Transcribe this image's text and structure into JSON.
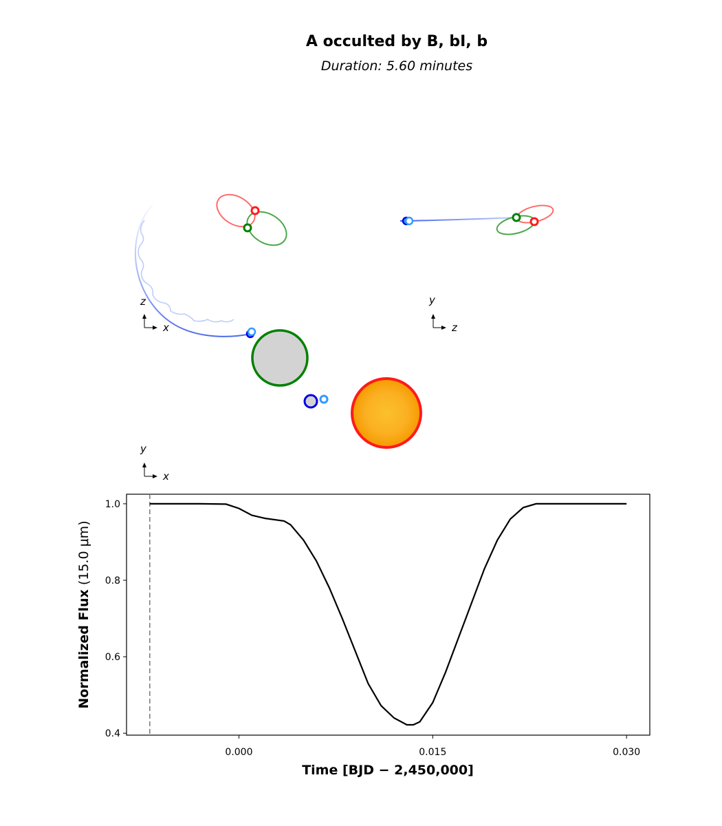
{
  "title": "A occulted by B, bI, b",
  "subtitle": "Duration: 5.60 minutes",
  "orbit_views": [
    {
      "name": "xz-view",
      "horizontal_axis": "x",
      "vertical_axis": "z"
    },
    {
      "name": "zy-view",
      "horizontal_axis": "z",
      "vertical_axis": "y"
    },
    {
      "name": "xy-view",
      "horizontal_axis": "x",
      "vertical_axis": "y"
    }
  ],
  "colors": {
    "star_A": "#ff1a1a",
    "star_A_fill": "#f9b21c",
    "star_B": "#008000",
    "star_B_fill": "#d3d3d3",
    "planet_bI": "#0000e6",
    "planet_b": "#3399ff",
    "orbit_A": "#ff6b6b",
    "orbit_B": "#4aa84a",
    "orbit_bI": "#5b7cf0"
  },
  "chart_data": {
    "type": "line",
    "xlabel_main": "Time [BJD",
    "xlabel_rest": " − 2,450,000]",
    "ylabel_main": "Normalized Flux",
    "ylabel_rest": " (15.0 μm)",
    "xlim": [
      -0.0087,
      0.0318
    ],
    "ylim": [
      0.395,
      1.025
    ],
    "x_ticks": [
      0.0,
      0.015,
      0.03
    ],
    "x_tick_labels": [
      "0.000",
      "0.015",
      "0.030"
    ],
    "y_ticks": [
      0.4,
      0.6,
      0.8,
      1.0
    ],
    "y_tick_labels": [
      "0.4",
      "0.6",
      "0.8",
      "1.0"
    ],
    "marker_line_x": -0.0069,
    "series": [
      {
        "x": [
          -0.0069,
          -0.003,
          -0.001,
          0.0,
          0.001,
          0.002,
          0.0035,
          0.004,
          0.005,
          0.006,
          0.007,
          0.008,
          0.009,
          0.01,
          0.011,
          0.012,
          0.013,
          0.0135,
          0.014,
          0.015,
          0.016,
          0.017,
          0.018,
          0.019,
          0.02,
          0.021,
          0.022,
          0.023,
          0.024,
          0.025,
          0.03
        ],
        "y": [
          1.0,
          1.0,
          0.999,
          0.988,
          0.97,
          0.962,
          0.955,
          0.945,
          0.905,
          0.85,
          0.78,
          0.7,
          0.615,
          0.53,
          0.472,
          0.44,
          0.422,
          0.422,
          0.43,
          0.48,
          0.56,
          0.65,
          0.74,
          0.83,
          0.905,
          0.96,
          0.99,
          1.0,
          1.0,
          1.0,
          1.0
        ]
      }
    ]
  }
}
